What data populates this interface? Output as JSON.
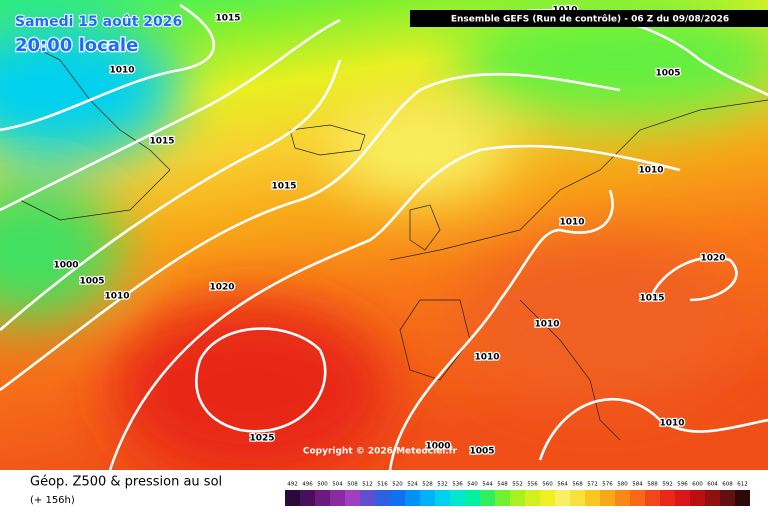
{
  "header": {
    "date": "Samedi 15 août 2026",
    "time": "20:00 locale",
    "run": "Ensemble GEFS  (Run de contrôle)  -  06 Z du 09/08/2026"
  },
  "isobar_labels": [
    1015,
    1010,
    1010,
    1005,
    1015,
    1015,
    1010,
    1010,
    1000,
    1005,
    1010,
    1020,
    1020,
    1015,
    1010,
    1010,
    1010,
    1025,
    1000,
    1005
  ],
  "copyright": "Copyright © 2026 Meteociel.fr",
  "footer": {
    "title": "Géop. Z500 & pression au sol",
    "lead": "(+ 156h)"
  },
  "scale": {
    "values": [
      492,
      496,
      500,
      504,
      508,
      512,
      516,
      520,
      524,
      528,
      532,
      536,
      540,
      544,
      548,
      552,
      556,
      560,
      564,
      568,
      572,
      576,
      580,
      584,
      588,
      592,
      596,
      600,
      604,
      608,
      612
    ],
    "colors": [
      "#2a0a3a",
      "#4b0f5a",
      "#6a1b80",
      "#8a2ba0",
      "#a040c0",
      "#6050d0",
      "#3060e0",
      "#1070f0",
      "#0090f8",
      "#00b0f8",
      "#00d0f0",
      "#00e8d0",
      "#00f0a0",
      "#30f060",
      "#70f030",
      "#a8f020",
      "#d0f020",
      "#f0f020",
      "#f8f060",
      "#f8e040",
      "#f8c820",
      "#f8a818",
      "#f88818",
      "#f86818",
      "#f04818",
      "#e82818",
      "#d81818",
      "#b81010",
      "#901010",
      "#601010",
      "#300808"
    ]
  }
}
